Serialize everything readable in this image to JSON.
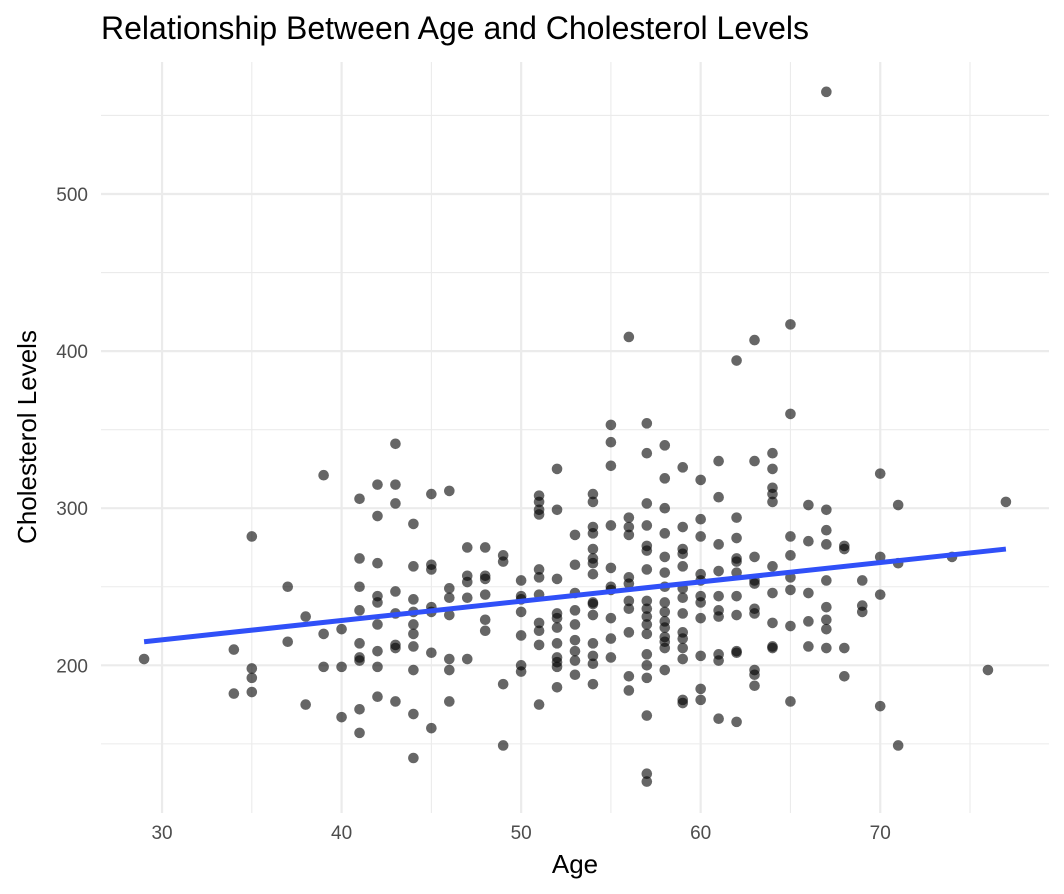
{
  "chart_data": {
    "type": "scatter",
    "title": "Relationship Between Age and Cholesterol Levels",
    "xlabel": "Age",
    "ylabel": "Cholesterol Levels",
    "xlim": [
      26.6,
      79.4
    ],
    "ylim": [
      106,
      584
    ],
    "x_ticks": [
      30,
      40,
      50,
      60,
      70
    ],
    "y_ticks": [
      200,
      300,
      400,
      500
    ],
    "grid": true,
    "legend": "none",
    "point_color": "#000000",
    "point_opacity": 0.6,
    "trend_color": "#3050f8",
    "trend_line": {
      "x": [
        29,
        77
      ],
      "y": [
        215,
        274
      ]
    },
    "points": [
      [
        29,
        204
      ],
      [
        34,
        182
      ],
      [
        34,
        210
      ],
      [
        35,
        198
      ],
      [
        35,
        192
      ],
      [
        35,
        183
      ],
      [
        35,
        282
      ],
      [
        37,
        215
      ],
      [
        37,
        250
      ],
      [
        38,
        231
      ],
      [
        38,
        175
      ],
      [
        39,
        321
      ],
      [
        39,
        220
      ],
      [
        39,
        199
      ],
      [
        40,
        223
      ],
      [
        40,
        199
      ],
      [
        40,
        167
      ],
      [
        41,
        306
      ],
      [
        41,
        268
      ],
      [
        41,
        250
      ],
      [
        41,
        235
      ],
      [
        41,
        214
      ],
      [
        41,
        205
      ],
      [
        41,
        203
      ],
      [
        41,
        172
      ],
      [
        41,
        157
      ],
      [
        42,
        315
      ],
      [
        42,
        295
      ],
      [
        42,
        265
      ],
      [
        42,
        244
      ],
      [
        42,
        240
      ],
      [
        42,
        226
      ],
      [
        42,
        209
      ],
      [
        42,
        199
      ],
      [
        42,
        180
      ],
      [
        43,
        341
      ],
      [
        43,
        315
      ],
      [
        43,
        303
      ],
      [
        43,
        247
      ],
      [
        43,
        233
      ],
      [
        43,
        213
      ],
      [
        43,
        211
      ],
      [
        43,
        177
      ],
      [
        44,
        290
      ],
      [
        44,
        263
      ],
      [
        44,
        242
      ],
      [
        44,
        234
      ],
      [
        44,
        226
      ],
      [
        44,
        220
      ],
      [
        44,
        212
      ],
      [
        44,
        197
      ],
      [
        44,
        169
      ],
      [
        44,
        141
      ],
      [
        45,
        309
      ],
      [
        45,
        264
      ],
      [
        45,
        261
      ],
      [
        45,
        237
      ],
      [
        45,
        234
      ],
      [
        45,
        208
      ],
      [
        45,
        160
      ],
      [
        46,
        311
      ],
      [
        46,
        249
      ],
      [
        46,
        243
      ],
      [
        46,
        232
      ],
      [
        46,
        204
      ],
      [
        46,
        197
      ],
      [
        46,
        177
      ],
      [
        47,
        275
      ],
      [
        47,
        257
      ],
      [
        47,
        253
      ],
      [
        47,
        243
      ],
      [
        47,
        204
      ],
      [
        48,
        275
      ],
      [
        48,
        257
      ],
      [
        48,
        255
      ],
      [
        48,
        245
      ],
      [
        48,
        229
      ],
      [
        48,
        222
      ],
      [
        49,
        270
      ],
      [
        49,
        266
      ],
      [
        49,
        188
      ],
      [
        49,
        149
      ],
      [
        50,
        254
      ],
      [
        50,
        244
      ],
      [
        50,
        242
      ],
      [
        50,
        234
      ],
      [
        50,
        219
      ],
      [
        50,
        200
      ],
      [
        50,
        196
      ],
      [
        51,
        308
      ],
      [
        51,
        304
      ],
      [
        51,
        299
      ],
      [
        51,
        296
      ],
      [
        51,
        261
      ],
      [
        51,
        256
      ],
      [
        51,
        245
      ],
      [
        51,
        227
      ],
      [
        51,
        222
      ],
      [
        51,
        213
      ],
      [
        51,
        175
      ],
      [
        52,
        325
      ],
      [
        52,
        299
      ],
      [
        52,
        255
      ],
      [
        52,
        233
      ],
      [
        52,
        230
      ],
      [
        52,
        224
      ],
      [
        52,
        214
      ],
      [
        52,
        205
      ],
      [
        52,
        202
      ],
      [
        52,
        199
      ],
      [
        52,
        186
      ],
      [
        53,
        283
      ],
      [
        53,
        264
      ],
      [
        53,
        246
      ],
      [
        53,
        235
      ],
      [
        53,
        226
      ],
      [
        53,
        216
      ],
      [
        53,
        209
      ],
      [
        53,
        203
      ],
      [
        53,
        194
      ],
      [
        54,
        309
      ],
      [
        54,
        304
      ],
      [
        54,
        288
      ],
      [
        54,
        284
      ],
      [
        54,
        274
      ],
      [
        54,
        268
      ],
      [
        54,
        265
      ],
      [
        54,
        258
      ],
      [
        54,
        240
      ],
      [
        54,
        239
      ],
      [
        54,
        232
      ],
      [
        54,
        214
      ],
      [
        54,
        206
      ],
      [
        54,
        201
      ],
      [
        54,
        188
      ],
      [
        55,
        353
      ],
      [
        55,
        342
      ],
      [
        55,
        327
      ],
      [
        55,
        289
      ],
      [
        55,
        262
      ],
      [
        55,
        250
      ],
      [
        55,
        248
      ],
      [
        55,
        230
      ],
      [
        55,
        217
      ],
      [
        55,
        205
      ],
      [
        56,
        409
      ],
      [
        56,
        294
      ],
      [
        56,
        288
      ],
      [
        56,
        283
      ],
      [
        56,
        256
      ],
      [
        56,
        252
      ],
      [
        56,
        241
      ],
      [
        56,
        236
      ],
      [
        56,
        221
      ],
      [
        56,
        193
      ],
      [
        56,
        184
      ],
      [
        57,
        354
      ],
      [
        57,
        335
      ],
      [
        57,
        303
      ],
      [
        57,
        289
      ],
      [
        57,
        276
      ],
      [
        57,
        273
      ],
      [
        57,
        261
      ],
      [
        57,
        241
      ],
      [
        57,
        236
      ],
      [
        57,
        231
      ],
      [
        57,
        226
      ],
      [
        57,
        220
      ],
      [
        57,
        207
      ],
      [
        57,
        200
      ],
      [
        57,
        192
      ],
      [
        57,
        168
      ],
      [
        57,
        131
      ],
      [
        57,
        126
      ],
      [
        58,
        340
      ],
      [
        58,
        319
      ],
      [
        58,
        300
      ],
      [
        58,
        284
      ],
      [
        58,
        269
      ],
      [
        58,
        259
      ],
      [
        58,
        250
      ],
      [
        58,
        240
      ],
      [
        58,
        234
      ],
      [
        58,
        228
      ],
      [
        58,
        224
      ],
      [
        58,
        218
      ],
      [
        58,
        215
      ],
      [
        58,
        211
      ],
      [
        58,
        197
      ],
      [
        59,
        326
      ],
      [
        59,
        288
      ],
      [
        59,
        274
      ],
      [
        59,
        271
      ],
      [
        59,
        263
      ],
      [
        59,
        249
      ],
      [
        59,
        243
      ],
      [
        59,
        233
      ],
      [
        59,
        221
      ],
      [
        59,
        217
      ],
      [
        59,
        211
      ],
      [
        59,
        204
      ],
      [
        59,
        178
      ],
      [
        59,
        176
      ],
      [
        60,
        318
      ],
      [
        60,
        293
      ],
      [
        60,
        282
      ],
      [
        60,
        258
      ],
      [
        60,
        254
      ],
      [
        60,
        244
      ],
      [
        60,
        240
      ],
      [
        60,
        230
      ],
      [
        60,
        206
      ],
      [
        60,
        185
      ],
      [
        60,
        178
      ],
      [
        61,
        330
      ],
      [
        61,
        307
      ],
      [
        61,
        277
      ],
      [
        61,
        260
      ],
      [
        61,
        244
      ],
      [
        61,
        235
      ],
      [
        61,
        231
      ],
      [
        61,
        207
      ],
      [
        61,
        203
      ],
      [
        61,
        166
      ],
      [
        62,
        394
      ],
      [
        62,
        294
      ],
      [
        62,
        281
      ],
      [
        62,
        268
      ],
      [
        62,
        266
      ],
      [
        62,
        259
      ],
      [
        62,
        244
      ],
      [
        62,
        232
      ],
      [
        62,
        209
      ],
      [
        62,
        208
      ],
      [
        62,
        164
      ],
      [
        63,
        407
      ],
      [
        63,
        330
      ],
      [
        63,
        269
      ],
      [
        63,
        254
      ],
      [
        63,
        252
      ],
      [
        63,
        236
      ],
      [
        63,
        233
      ],
      [
        63,
        197
      ],
      [
        63,
        194
      ],
      [
        63,
        187
      ],
      [
        64,
        335
      ],
      [
        64,
        325
      ],
      [
        64,
        313
      ],
      [
        64,
        309
      ],
      [
        64,
        304
      ],
      [
        64,
        263
      ],
      [
        64,
        246
      ],
      [
        64,
        227
      ],
      [
        64,
        212
      ],
      [
        64,
        211
      ],
      [
        65,
        417
      ],
      [
        65,
        360
      ],
      [
        65,
        282
      ],
      [
        65,
        270
      ],
      [
        65,
        256
      ],
      [
        65,
        248
      ],
      [
        65,
        225
      ],
      [
        65,
        177
      ],
      [
        66,
        302
      ],
      [
        66,
        279
      ],
      [
        66,
        246
      ],
      [
        66,
        228
      ],
      [
        66,
        212
      ],
      [
        67,
        565
      ],
      [
        67,
        299
      ],
      [
        67,
        286
      ],
      [
        67,
        277
      ],
      [
        67,
        254
      ],
      [
        67,
        237
      ],
      [
        67,
        229
      ],
      [
        67,
        223
      ],
      [
        67,
        211
      ],
      [
        68,
        276
      ],
      [
        68,
        274
      ],
      [
        68,
        211
      ],
      [
        68,
        193
      ],
      [
        69,
        254
      ],
      [
        69,
        238
      ],
      [
        69,
        234
      ],
      [
        70,
        322
      ],
      [
        70,
        269
      ],
      [
        70,
        245
      ],
      [
        70,
        174
      ],
      [
        71,
        302
      ],
      [
        71,
        265
      ],
      [
        71,
        149
      ],
      [
        74,
        269
      ],
      [
        76,
        197
      ],
      [
        77,
        304
      ]
    ]
  }
}
